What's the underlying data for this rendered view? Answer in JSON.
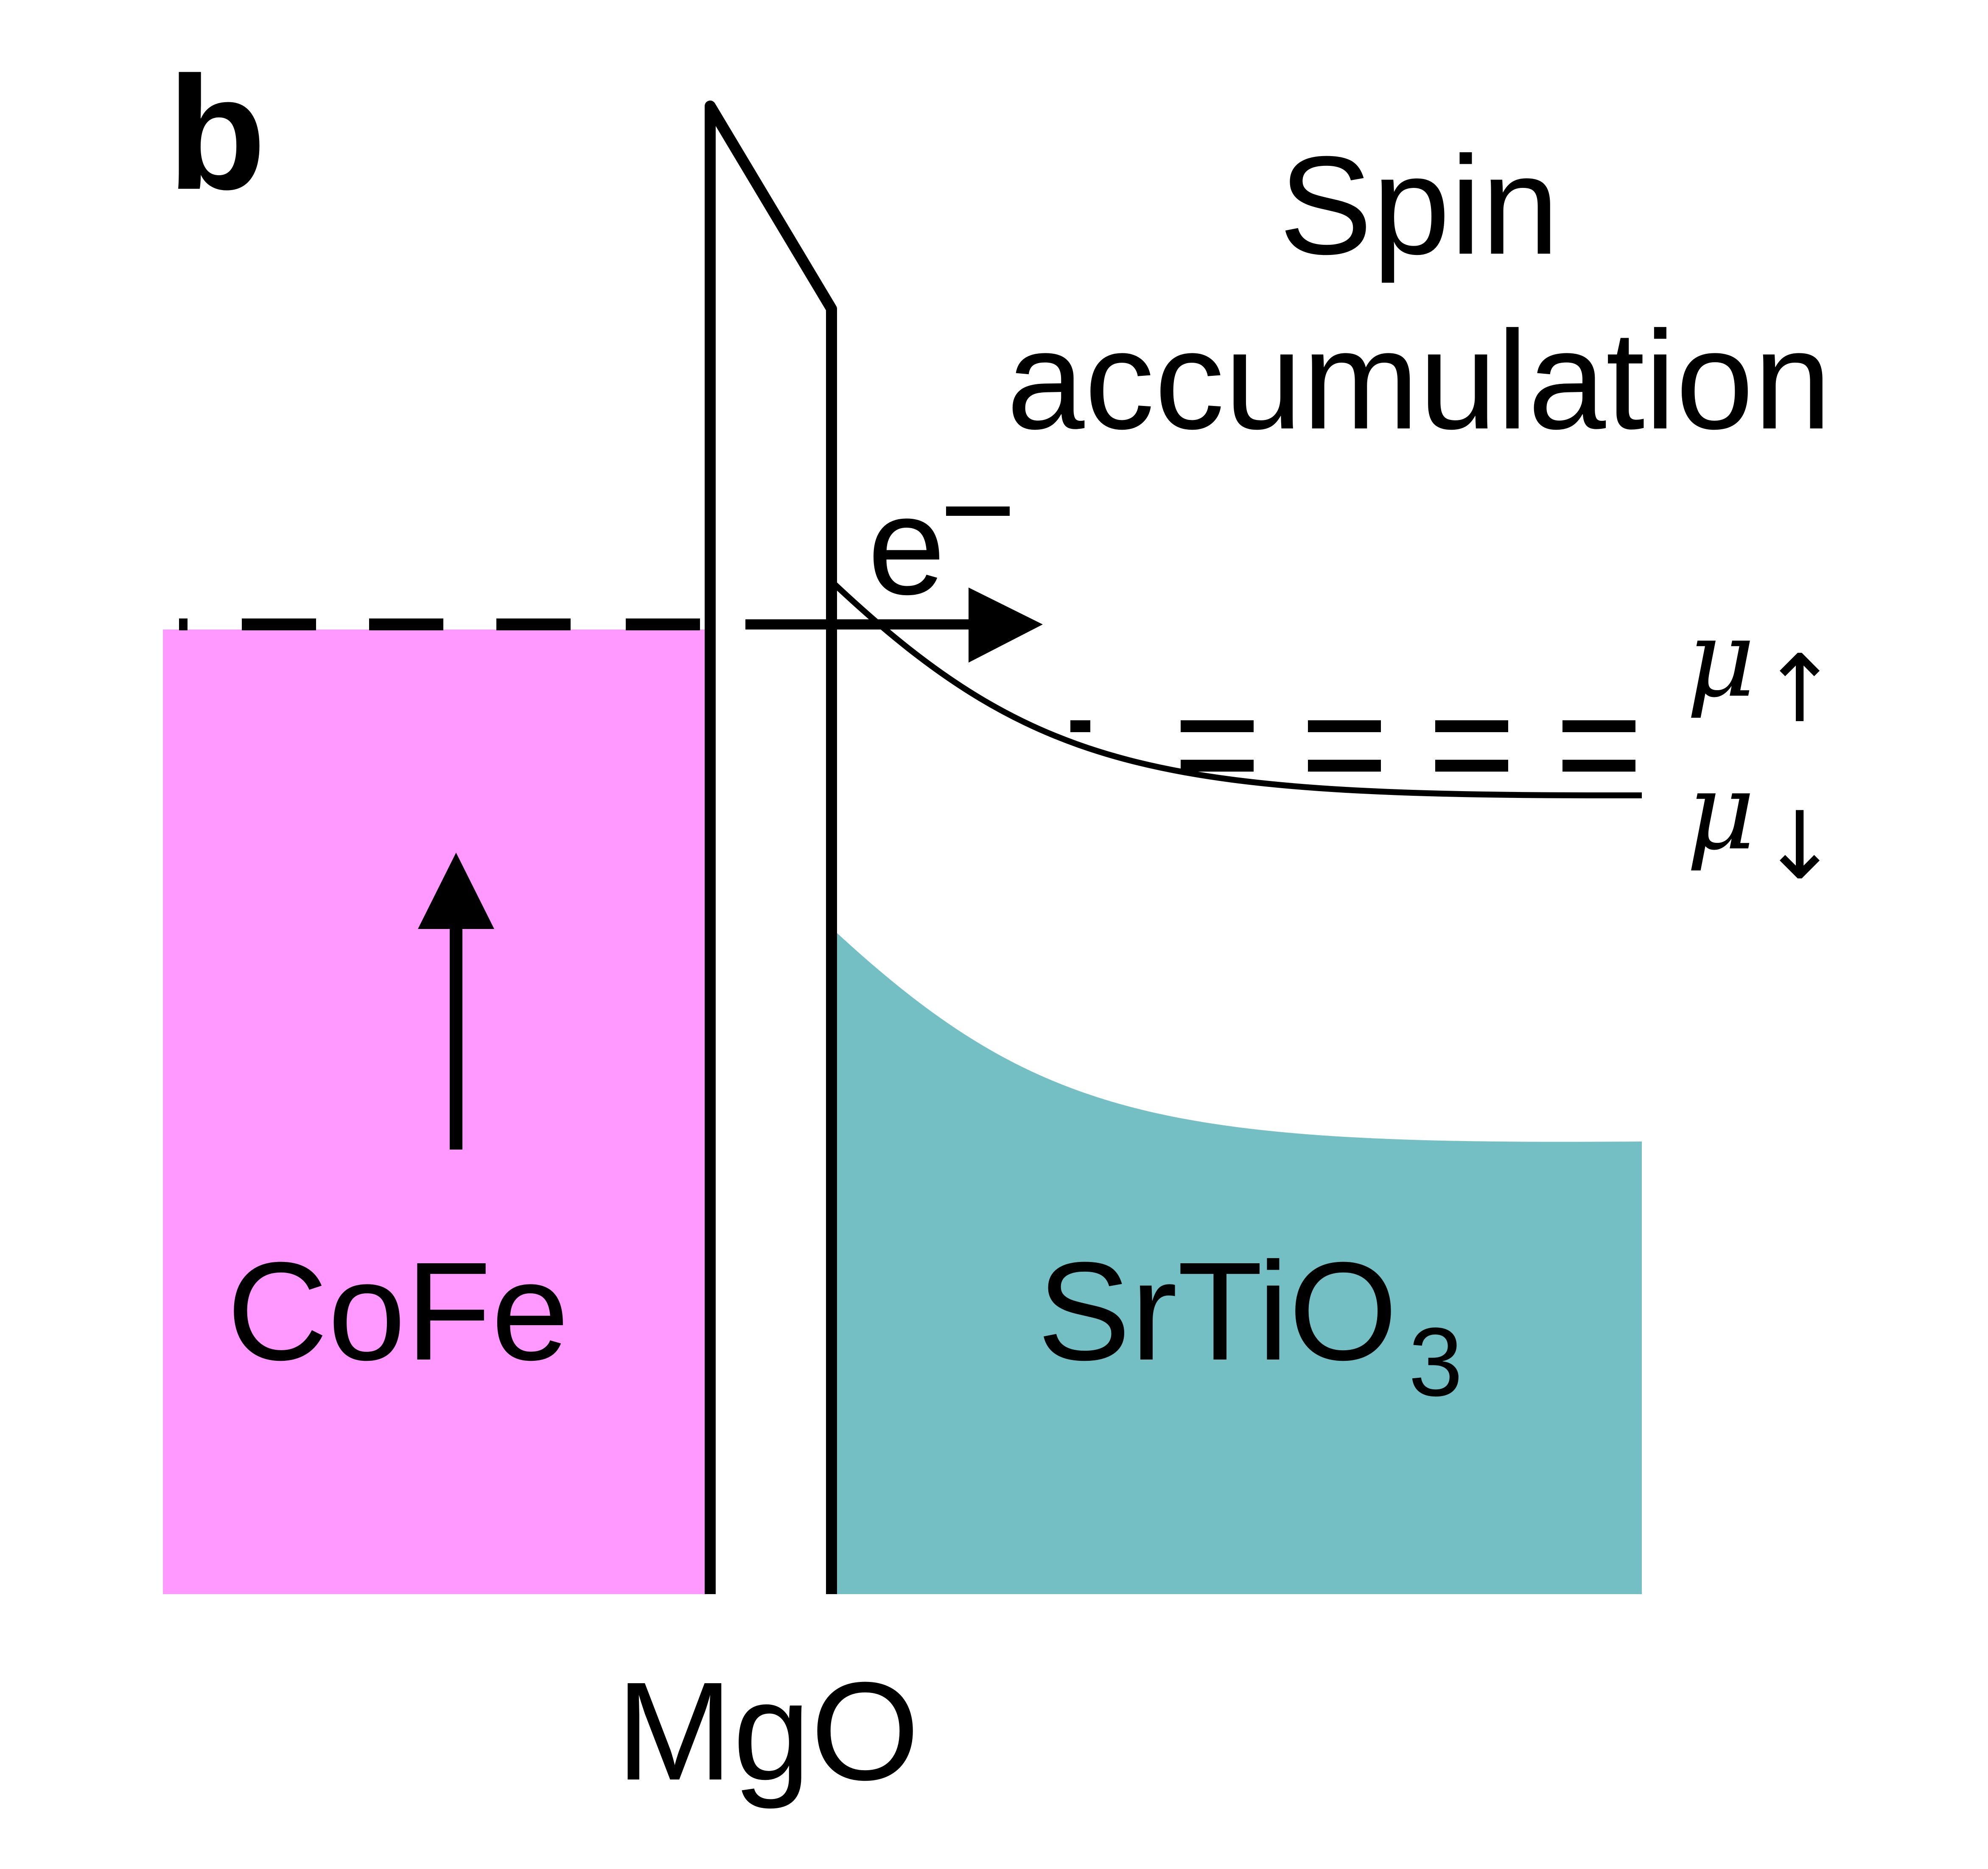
{
  "panel_label": "b",
  "title": {
    "line1": "Spin",
    "line2": "accumulation"
  },
  "electron": {
    "symbol": "e",
    "charge": "−"
  },
  "potentials": {
    "up": {
      "symbol": "μ",
      "arrow": "↑"
    },
    "down": {
      "symbol": "μ",
      "arrow": "↓"
    }
  },
  "materials": {
    "ferromagnet": {
      "label": "CoFe",
      "color": "#ff99ff"
    },
    "barrier": {
      "label": "MgO"
    },
    "semiconductor": {
      "label_main": "SrTiO",
      "label_sub": "3",
      "color": "#74bfc4"
    }
  },
  "magnetization_arrow": "up"
}
